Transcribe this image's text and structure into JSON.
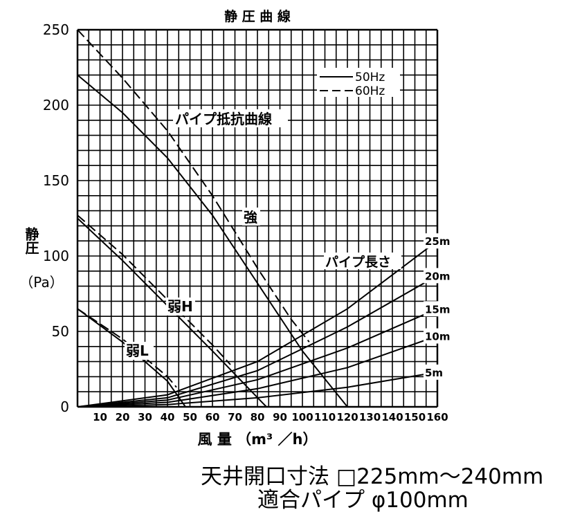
{
  "chart_data": {
    "type": "line",
    "title": "静 圧 曲 線",
    "xlabel": "風 量 （m³ ／h）",
    "ylabel": "静圧",
    "ylabel_unit": "（Pa）",
    "xlim": [
      0,
      160
    ],
    "ylim": [
      0,
      250
    ],
    "xticks": [
      10,
      20,
      30,
      40,
      50,
      60,
      70,
      80,
      90,
      100,
      110,
      120,
      130,
      140,
      150,
      160
    ],
    "yticks": [
      0,
      50,
      100,
      150,
      200,
      250
    ],
    "grid": true,
    "legend": {
      "position": "top-right",
      "entries": [
        {
          "label": "50Hz",
          "style": "solid"
        },
        {
          "label": "60Hz",
          "style": "dashed"
        }
      ]
    },
    "annotations": {
      "pipe_resistance": "パイプ抵抗曲線",
      "pipe_length": "パイプ長さ"
    },
    "series": [
      {
        "name": "強",
        "freq": "50Hz",
        "x": [
          0,
          20,
          40,
          60,
          80,
          100,
          120
        ],
        "y": [
          220,
          195,
          165,
          127,
          82,
          37,
          0
        ]
      },
      {
        "name": "強",
        "freq": "60Hz",
        "x": [
          0,
          20,
          40,
          60,
          80,
          95,
          103
        ],
        "y": [
          250,
          218,
          183,
          140,
          92,
          58,
          43
        ]
      },
      {
        "name": "弱H",
        "freq": "50Hz",
        "x": [
          0,
          20,
          40,
          60,
          84
        ],
        "y": [
          125,
          97,
          67,
          37,
          0
        ]
      },
      {
        "name": "弱H",
        "freq": "60Hz",
        "x": [
          0,
          20,
          40,
          60,
          68
        ],
        "y": [
          127,
          101,
          71,
          41,
          28
        ]
      },
      {
        "name": "弱L",
        "freq": "50Hz",
        "x": [
          0,
          20,
          40,
          48
        ],
        "y": [
          65,
          43,
          17,
          0
        ]
      },
      {
        "name": "弱L",
        "freq": "60Hz",
        "x": [
          0,
          20,
          40,
          44
        ],
        "y": [
          65,
          45,
          20,
          13
        ]
      },
      {
        "name": "25m",
        "x": [
          0,
          40,
          80,
          120,
          160
        ],
        "y": [
          0,
          8,
          30,
          65,
          110
        ]
      },
      {
        "name": "20m",
        "x": [
          0,
          40,
          80,
          120,
          160
        ],
        "y": [
          0,
          6,
          24,
          53,
          87
        ]
      },
      {
        "name": "15m",
        "x": [
          0,
          40,
          80,
          120,
          160
        ],
        "y": [
          0,
          4.5,
          18,
          39,
          65
        ]
      },
      {
        "name": "10m",
        "x": [
          0,
          40,
          80,
          120,
          160
        ],
        "y": [
          0,
          3,
          12,
          26,
          47
        ]
      },
      {
        "name": "5m",
        "x": [
          0,
          40,
          80,
          120,
          160
        ],
        "y": [
          0,
          1.5,
          6,
          13,
          23
        ]
      }
    ]
  },
  "spec": {
    "line1": "天井開口寸法 □225mm～240mm",
    "line2": "適合パイプ φ100mm"
  }
}
